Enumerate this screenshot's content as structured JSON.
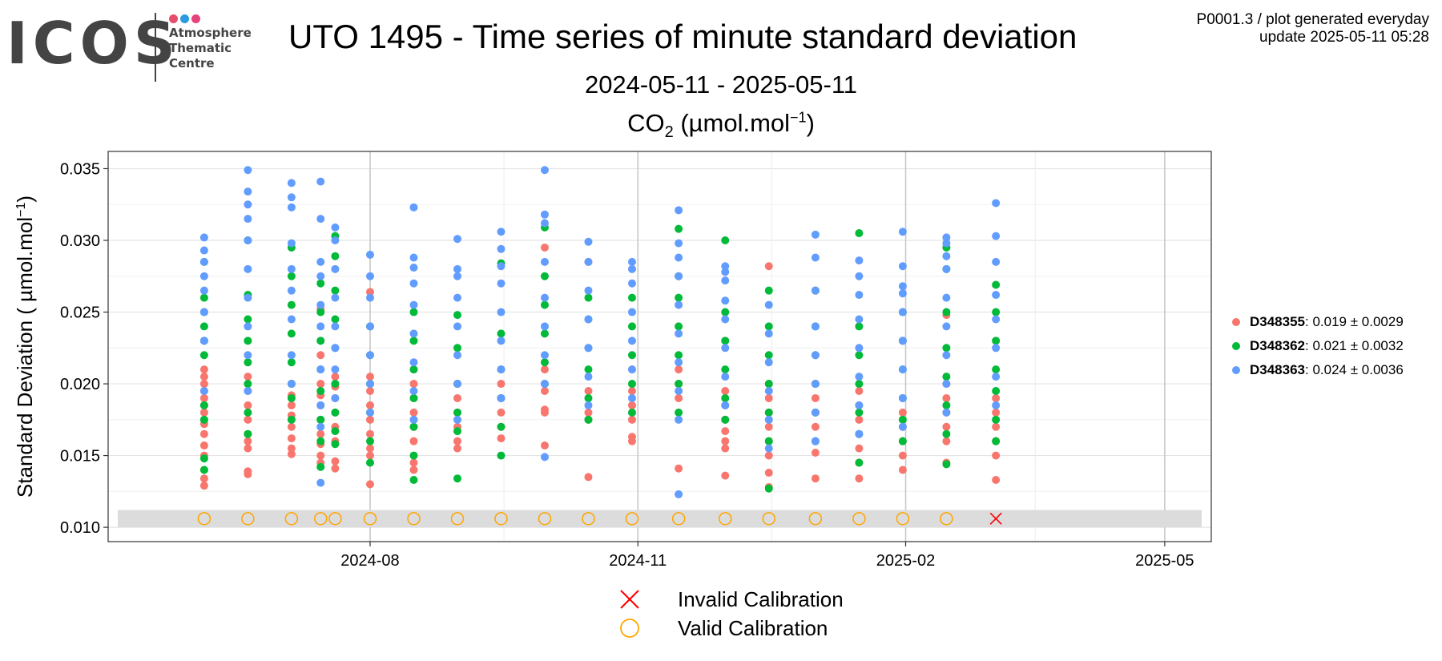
{
  "logo": {
    "letters": "ICOS",
    "subtitle_lines": [
      "Atmosphere",
      "Thematic",
      "Centre"
    ],
    "dot_colors": [
      "#e84e6b",
      "#2a9be0",
      "#e8427a"
    ]
  },
  "meta": {
    "line1": "P0001.3 / plot generated everyday",
    "line2": "update  2025-05-11 05:28"
  },
  "chart_data": {
    "type": "scatter",
    "title": "UTO 1495 - Time series of minute standard deviation",
    "subtitle": "2024-05-11 - 2025-05-11",
    "species": "CO",
    "species_sub": "2",
    "species_unit_pre": " (µmol.mol",
    "species_unit_sup": "−1",
    "species_unit_post": ")",
    "ylabel": "Standard Deviation ( µmol.mol",
    "ylabel_sup": "−1",
    "ylabel_post": ")",
    "xlabel": "",
    "x_axis": "date",
    "xlim": [
      "2024-05-03",
      "2025-05-17"
    ],
    "ylim": [
      0.009,
      0.0362
    ],
    "grid": true,
    "x_ticks": [
      "2024-08",
      "2024-11",
      "2025-02",
      "2025-05"
    ],
    "x_tick_dates": [
      "2024-08-01",
      "2024-11-01",
      "2025-02-01",
      "2025-05-01"
    ],
    "y_ticks": [
      "0.010",
      "0.015",
      "0.020",
      "0.025",
      "0.030",
      "0.035"
    ],
    "y_tick_values": [
      0.01,
      0.015,
      0.02,
      0.025,
      0.03,
      0.035
    ],
    "legend_position": "right",
    "session_dates": [
      "2024-06-05",
      "2024-06-20",
      "2024-07-05",
      "2024-07-15",
      "2024-07-20",
      "2024-08-01",
      "2024-08-16",
      "2024-08-31",
      "2024-09-15",
      "2024-09-30",
      "2024-10-15",
      "2024-10-30",
      "2024-11-15",
      "2024-12-01",
      "2024-12-16",
      "2025-01-01",
      "2025-01-16",
      "2025-01-31",
      "2025-02-15",
      "2025-03-04"
    ],
    "series": [
      {
        "name": "D348355",
        "stat": "0.019 ± 0.0029",
        "color": "#f8766d",
        "points": [
          {
            "x": "2024-06-05",
            "y": [
              0.0129,
              0.0134,
              0.014,
              0.015,
              0.0157,
              0.0165,
              0.0172,
              0.018,
              0.0185,
              0.019,
              0.0195,
              0.02,
              0.0205,
              0.021
            ]
          },
          {
            "x": "2024-06-20",
            "y": [
              0.0137,
              0.0139,
              0.0155,
              0.016,
              0.0165,
              0.0175,
              0.0185,
              0.0195,
              0.0205
            ]
          },
          {
            "x": "2024-07-05",
            "y": [
              0.0151,
              0.0155,
              0.0162,
              0.017,
              0.0178,
              0.0185,
              0.0192,
              0.02
            ]
          },
          {
            "x": "2024-07-15",
            "y": [
              0.0145,
              0.015,
              0.0158,
              0.0165,
              0.0175,
              0.0185,
              0.0192,
              0.02,
              0.021,
              0.022,
              0.0252
            ]
          },
          {
            "x": "2024-07-20",
            "y": [
              0.0141,
              0.0146,
              0.016,
              0.017,
              0.018,
              0.019,
              0.0198,
              0.0205
            ]
          },
          {
            "x": "2024-08-01",
            "y": [
              0.013,
              0.015,
              0.0155,
              0.0165,
              0.0175,
              0.0185,
              0.0195,
              0.0205,
              0.0264
            ]
          },
          {
            "x": "2024-08-16",
            "y": [
              0.014,
              0.0145,
              0.016,
              0.017,
              0.018,
              0.019,
              0.02,
              0.021
            ]
          },
          {
            "x": "2024-08-31",
            "y": [
              0.0155,
              0.016,
              0.017,
              0.018,
              0.019,
              0.02
            ]
          },
          {
            "x": "2024-09-15",
            "y": [
              0.0162,
              0.017,
              0.018,
              0.019,
              0.02,
              0.021
            ]
          },
          {
            "x": "2024-09-30",
            "y": [
              0.0157,
              0.018,
              0.0182,
              0.0195,
              0.021,
              0.0295
            ]
          },
          {
            "x": "2024-10-15",
            "y": [
              0.0135,
              0.0175,
              0.018,
              0.0195,
              0.0285
            ]
          },
          {
            "x": "2024-10-30",
            "y": [
              0.016,
              0.0163,
              0.0175,
              0.0185,
              0.0195,
              0.021
            ]
          },
          {
            "x": "2024-11-15",
            "y": [
              0.0141,
              0.019,
              0.02,
              0.021
            ]
          },
          {
            "x": "2024-12-01",
            "y": [
              0.0136,
              0.0155,
              0.016,
              0.0167,
              0.0175,
              0.0185,
              0.0195
            ]
          },
          {
            "x": "2024-12-16",
            "y": [
              0.0128,
              0.0138,
              0.015,
              0.016,
              0.017,
              0.018,
              0.019,
              0.02,
              0.0282
            ]
          },
          {
            "x": "2025-01-01",
            "y": [
              0.0134,
              0.0152,
              0.016,
              0.017,
              0.018,
              0.019,
              0.02
            ]
          },
          {
            "x": "2025-01-16",
            "y": [
              0.0134,
              0.0145,
              0.0155,
              0.0165,
              0.0175,
              0.0185,
              0.0195
            ]
          },
          {
            "x": "2025-01-31",
            "y": [
              0.014,
              0.015,
              0.016,
              0.017,
              0.018
            ]
          },
          {
            "x": "2025-02-15",
            "y": [
              0.0145,
              0.016,
              0.017,
              0.018,
              0.019,
              0.02,
              0.0248
            ]
          },
          {
            "x": "2025-03-04",
            "y": [
              0.0133,
              0.015,
              0.016,
              0.017,
              0.018,
              0.019
            ]
          }
        ]
      },
      {
        "name": "D348362",
        "stat": "0.021 ± 0.0032",
        "color": "#00ba38",
        "points": [
          {
            "x": "2024-06-05",
            "y": [
              0.014,
              0.0148,
              0.0175,
              0.0185,
              0.022,
              0.023,
              0.024,
              0.025,
              0.026,
              0.0285
            ]
          },
          {
            "x": "2024-06-20",
            "y": [
              0.0165,
              0.018,
              0.02,
              0.0215,
              0.023,
              0.0245,
              0.0262,
              0.03
            ]
          },
          {
            "x": "2024-07-05",
            "y": [
              0.0175,
              0.019,
              0.02,
              0.0215,
              0.0235,
              0.0255,
              0.0275,
              0.0295
            ]
          },
          {
            "x": "2024-07-15",
            "y": [
              0.0142,
              0.016,
              0.0175,
              0.0195,
              0.021,
              0.023,
              0.025,
              0.027
            ]
          },
          {
            "x": "2024-07-20",
            "y": [
              0.0158,
              0.0167,
              0.018,
              0.02,
              0.0225,
              0.0245,
              0.0265,
              0.0289,
              0.0303
            ]
          },
          {
            "x": "2024-08-01",
            "y": [
              0.0145,
              0.016,
              0.018,
              0.02,
              0.022,
              0.024
            ]
          },
          {
            "x": "2024-08-16",
            "y": [
              0.0133,
              0.015,
              0.017,
              0.019,
              0.021,
              0.023,
              0.025
            ]
          },
          {
            "x": "2024-08-31",
            "y": [
              0.0134,
              0.0167,
              0.018,
              0.02,
              0.0225,
              0.0248
            ]
          },
          {
            "x": "2024-09-15",
            "y": [
              0.015,
              0.017,
              0.019,
              0.021,
              0.0235,
              0.0284
            ]
          },
          {
            "x": "2024-09-30",
            "y": [
              0.02,
              0.0215,
              0.0235,
              0.0255,
              0.0275,
              0.0309
            ]
          },
          {
            "x": "2024-10-15",
            "y": [
              0.0175,
              0.019,
              0.021,
              0.0225,
              0.0245,
              0.026
            ]
          },
          {
            "x": "2024-10-30",
            "y": [
              0.018,
              0.02,
              0.022,
              0.024,
              0.026
            ]
          },
          {
            "x": "2024-11-15",
            "y": [
              0.018,
              0.02,
              0.022,
              0.024,
              0.026,
              0.0275,
              0.0308
            ]
          },
          {
            "x": "2024-12-01",
            "y": [
              0.0175,
              0.019,
              0.021,
              0.023,
              0.025,
              0.03
            ]
          },
          {
            "x": "2024-12-16",
            "y": [
              0.0127,
              0.016,
              0.018,
              0.02,
              0.022,
              0.024,
              0.0265
            ]
          },
          {
            "x": "2025-01-01",
            "y": [
              0.016,
              0.018,
              0.02,
              0.022,
              0.024,
              0.0265
            ]
          },
          {
            "x": "2025-01-16",
            "y": [
              0.0145,
              0.0165,
              0.018,
              0.02,
              0.022,
              0.024,
              0.0305
            ]
          },
          {
            "x": "2025-01-31",
            "y": [
              0.016,
              0.0175,
              0.019,
              0.021,
              0.023,
              0.025
            ]
          },
          {
            "x": "2025-02-15",
            "y": [
              0.0144,
              0.0165,
              0.0185,
              0.0205,
              0.0225,
              0.025,
              0.028,
              0.0295
            ]
          },
          {
            "x": "2025-03-04",
            "y": [
              0.016,
              0.0175,
              0.0195,
              0.021,
              0.023,
              0.025,
              0.0269
            ]
          }
        ]
      },
      {
        "name": "D348363",
        "stat": "0.024 ± 0.0036",
        "color": "#619cff",
        "points": [
          {
            "x": "2024-06-05",
            "y": [
              0.0195,
              0.023,
              0.025,
              0.0265,
              0.0275,
              0.0285,
              0.0293,
              0.0302
            ]
          },
          {
            "x": "2024-06-20",
            "y": [
              0.0195,
              0.022,
              0.024,
              0.026,
              0.028,
              0.03,
              0.0315,
              0.0325,
              0.0334,
              0.0349
            ]
          },
          {
            "x": "2024-07-05",
            "y": [
              0.02,
              0.022,
              0.0245,
              0.0265,
              0.028,
              0.0298,
              0.0323,
              0.033,
              0.034
            ]
          },
          {
            "x": "2024-07-15",
            "y": [
              0.0131,
              0.017,
              0.0185,
              0.021,
              0.024,
              0.0255,
              0.0275,
              0.0285,
              0.0315,
              0.0341
            ]
          },
          {
            "x": "2024-07-20",
            "y": [
              0.019,
              0.021,
              0.0225,
              0.024,
              0.026,
              0.028,
              0.03,
              0.0309
            ]
          },
          {
            "x": "2024-08-01",
            "y": [
              0.018,
              0.02,
              0.022,
              0.024,
              0.026,
              0.0275,
              0.029
            ]
          },
          {
            "x": "2024-08-16",
            "y": [
              0.0175,
              0.0195,
              0.0215,
              0.0235,
              0.0255,
              0.027,
              0.0281,
              0.0288,
              0.0323
            ]
          },
          {
            "x": "2024-08-31",
            "y": [
              0.0175,
              0.02,
              0.022,
              0.024,
              0.026,
              0.0275,
              0.028,
              0.0301
            ]
          },
          {
            "x": "2024-09-15",
            "y": [
              0.019,
              0.021,
              0.023,
              0.025,
              0.027,
              0.0282,
              0.0294,
              0.0306
            ]
          },
          {
            "x": "2024-09-30",
            "y": [
              0.0149,
              0.02,
              0.022,
              0.024,
              0.026,
              0.0285,
              0.0312,
              0.0318,
              0.0349
            ]
          },
          {
            "x": "2024-10-15",
            "y": [
              0.0185,
              0.0205,
              0.0225,
              0.0245,
              0.0265,
              0.0285,
              0.0299
            ]
          },
          {
            "x": "2024-10-30",
            "y": [
              0.019,
              0.021,
              0.023,
              0.025,
              0.027,
              0.028,
              0.0285
            ]
          },
          {
            "x": "2024-11-15",
            "y": [
              0.0123,
              0.0175,
              0.0195,
              0.0215,
              0.0235,
              0.0255,
              0.0275,
              0.0288,
              0.0298,
              0.0321
            ]
          },
          {
            "x": "2024-12-01",
            "y": [
              0.0185,
              0.0205,
              0.0225,
              0.0245,
              0.0258,
              0.0272,
              0.0278,
              0.0282
            ]
          },
          {
            "x": "2024-12-16",
            "y": [
              0.0155,
              0.0175,
              0.0195,
              0.0215,
              0.0235,
              0.0255
            ]
          },
          {
            "x": "2025-01-01",
            "y": [
              0.016,
              0.018,
              0.02,
              0.022,
              0.024,
              0.0265,
              0.0288,
              0.0304
            ]
          },
          {
            "x": "2025-01-16",
            "y": [
              0.0165,
              0.0185,
              0.0205,
              0.0225,
              0.0245,
              0.0262,
              0.0275,
              0.0286
            ]
          },
          {
            "x": "2025-01-31",
            "y": [
              0.017,
              0.019,
              0.021,
              0.023,
              0.025,
              0.0263,
              0.0268,
              0.0282,
              0.0306
            ]
          },
          {
            "x": "2025-02-15",
            "y": [
              0.018,
              0.02,
              0.022,
              0.024,
              0.026,
              0.028,
              0.0289,
              0.0298,
              0.0302
            ]
          },
          {
            "x": "2025-03-04",
            "y": [
              0.0185,
              0.0205,
              0.0225,
              0.0245,
              0.0262,
              0.0285,
              0.0303,
              0.0326
            ]
          }
        ]
      }
    ],
    "calibrations": {
      "band_y": [
        0.01,
        0.0112
      ],
      "marker_y": 0.0106,
      "valid": {
        "label": "Valid Calibration",
        "color": "#ffa500",
        "dates": [
          "2024-06-05",
          "2024-06-20",
          "2024-07-05",
          "2024-07-15",
          "2024-07-20",
          "2024-08-01",
          "2024-08-16",
          "2024-08-31",
          "2024-09-15",
          "2024-09-30",
          "2024-10-15",
          "2024-10-30",
          "2024-11-15",
          "2024-12-01",
          "2024-12-16",
          "2025-01-01",
          "2025-01-16",
          "2025-01-31",
          "2025-02-15"
        ]
      },
      "invalid": {
        "label": "Invalid Calibration",
        "color": "#ff0000",
        "dates": [
          "2025-03-04"
        ]
      }
    }
  }
}
